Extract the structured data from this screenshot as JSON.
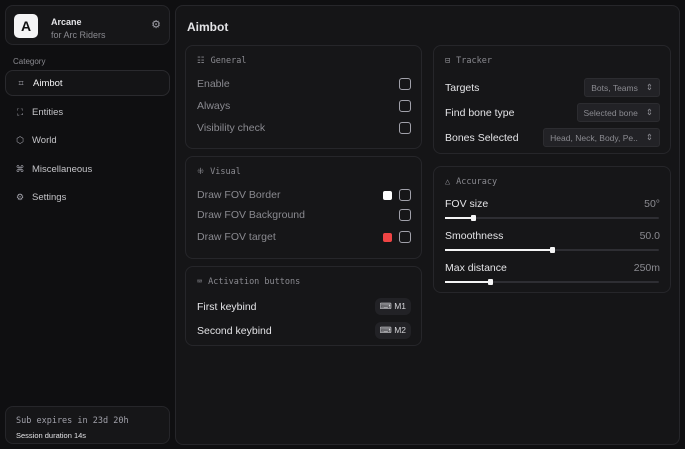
{
  "brand": {
    "logo": "A",
    "name": "Arcane",
    "subtitle": "for Arc Riders"
  },
  "sidebar": {
    "category_label": "Category",
    "items": [
      {
        "label": "Aimbot",
        "icon": "crosshair-icon",
        "active": true
      },
      {
        "label": "Entities",
        "icon": "scan-icon"
      },
      {
        "label": "World",
        "icon": "globe-icon"
      },
      {
        "label": "Miscellaneous",
        "icon": "grid-icon"
      },
      {
        "label": "Settings",
        "icon": "gear-icon"
      }
    ]
  },
  "subscription": {
    "expires": "Sub expires in 23d 20h",
    "session": "Session duration 14s"
  },
  "page": {
    "title": "Aimbot"
  },
  "general": {
    "title": "General",
    "rows": [
      {
        "label": "Enable",
        "checked": false
      },
      {
        "label": "Always",
        "checked": false
      },
      {
        "label": "Visibility check",
        "checked": false
      }
    ]
  },
  "visual": {
    "title": "Visual",
    "rows": [
      {
        "label": "Draw FOV Border",
        "color": "#ffffff",
        "checked": false
      },
      {
        "label": "Draw FOV Background",
        "checked": false
      },
      {
        "label": "Draw FOV target",
        "color": "#ef4444",
        "checked": false
      }
    ]
  },
  "activation": {
    "title": "Activation buttons",
    "rows": [
      {
        "label": "First keybind",
        "key": "M1"
      },
      {
        "label": "Second keybind",
        "key": "M2"
      }
    ]
  },
  "tracker": {
    "title": "Tracker",
    "rows": [
      {
        "label": "Targets",
        "value": "Bots, Teams"
      },
      {
        "label": "Find bone type",
        "value": "Selected bone"
      },
      {
        "label": "Bones Selected",
        "value": "Head, Neck, Body, Pe.."
      }
    ]
  },
  "accuracy": {
    "title": "Accuracy",
    "sliders": [
      {
        "label": "FOV size",
        "value": "50°",
        "percent": 13
      },
      {
        "label": "Smoothness",
        "value": "50.0",
        "percent": 50
      },
      {
        "label": "Max distance",
        "value": "250m",
        "percent": 21
      }
    ]
  }
}
